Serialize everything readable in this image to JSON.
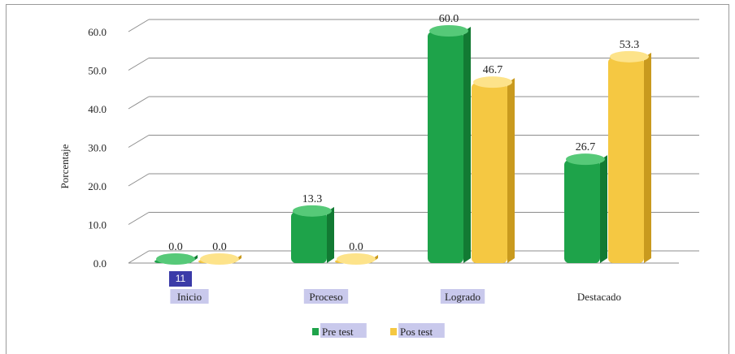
{
  "chart_data": {
    "type": "bar",
    "ylabel": "Porcentaje",
    "categories": [
      "Inicio",
      "Proceso",
      "Logrado",
      "Destacado"
    ],
    "series": [
      {
        "name": "Pre test",
        "values": [
          0.0,
          13.3,
          60.0,
          26.7
        ],
        "labels": [
          "0.0",
          "13.3",
          "60.0",
          "26.7"
        ],
        "color": "#1ea34a"
      },
      {
        "name": "Pos test",
        "values": [
          0.0,
          0.0,
          46.7,
          53.3
        ],
        "labels": [
          "0.0",
          "0.0",
          "46.7",
          "53.3"
        ],
        "color": "#f5c842"
      }
    ],
    "yticks": [
      "0.0",
      "10.0",
      "20.0",
      "30.0",
      "40.0",
      "50.0",
      "60.0"
    ],
    "ylim": [
      0,
      60
    ],
    "grid": true,
    "legend_position": "bottom"
  },
  "badge": {
    "text": "11"
  },
  "colors": {
    "pre_side": "#127a33",
    "pre_top": "#56c978",
    "pos_side": "#c99a1e",
    "pos_top": "#fde38a",
    "grid": "#8c8c8c"
  }
}
